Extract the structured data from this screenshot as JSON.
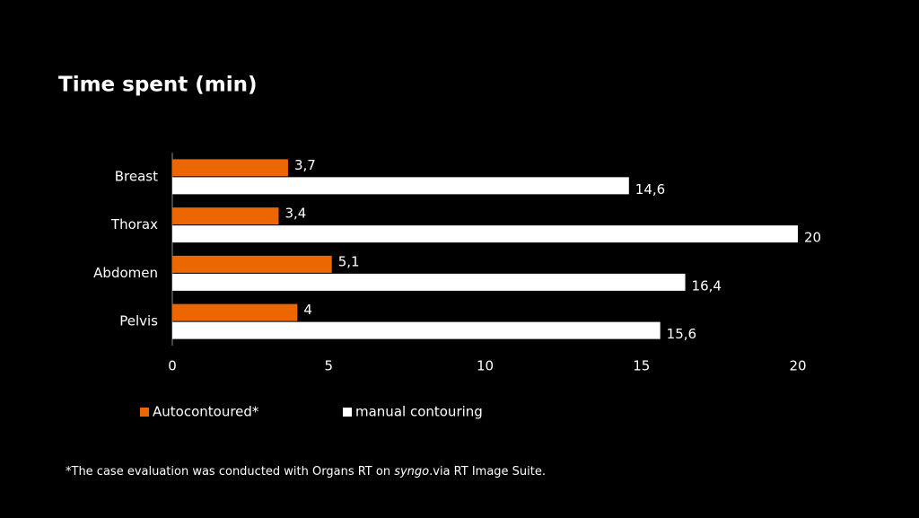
{
  "chart_data": {
    "type": "hbar",
    "title": "Time spent (min)",
    "categories": [
      "Breast",
      "Thorax",
      "Abdomen",
      "Pelvis"
    ],
    "series": [
      {
        "name": "Autocontoured*",
        "color": "#ec6602",
        "values": [
          3.7,
          3.4,
          5.1,
          4
        ],
        "value_labels": [
          "3,7",
          "3,4",
          "5,1",
          "4"
        ]
      },
      {
        "name": "manual contouring",
        "color": "#ffffff",
        "values": [
          14.6,
          20,
          16.4,
          15.6
        ],
        "value_labels": [
          "14,6",
          "20",
          "16,4",
          "15,6"
        ]
      }
    ],
    "xlim": [
      0,
      20
    ],
    "xticks": [
      0,
      5,
      10,
      15,
      20
    ],
    "grid": false,
    "legend": "bottom",
    "footnote": [
      "*The case evaluation was conducted with Organs RT on ",
      "syngo",
      ".via RT Image Suite."
    ]
  }
}
